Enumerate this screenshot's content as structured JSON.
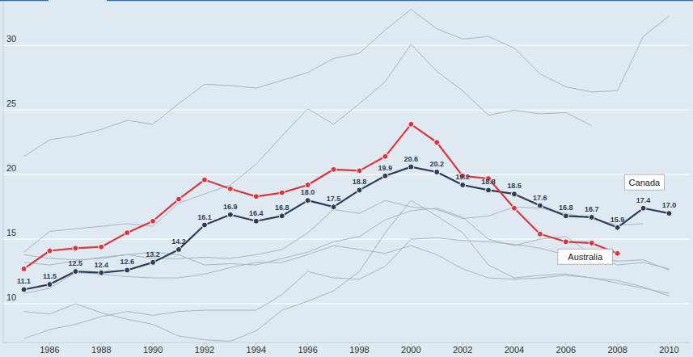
{
  "chart_data": {
    "type": "line",
    "x": [
      1985,
      1986,
      1987,
      1988,
      1989,
      1990,
      1991,
      1992,
      1993,
      1994,
      1995,
      1996,
      1997,
      1998,
      1999,
      2000,
      2001,
      2002,
      2003,
      2004,
      2005,
      2006,
      2007,
      2008,
      2009,
      2010
    ],
    "xlim": [
      1984.2,
      2010.8
    ],
    "xticks": [
      1986,
      1988,
      1990,
      1992,
      1994,
      1996,
      1998,
      2000,
      2002,
      2004,
      2006,
      2008,
      2010
    ],
    "ylim": [
      7,
      33.4
    ],
    "yticks": [
      10,
      15,
      20,
      25,
      30
    ],
    "grid": true,
    "series": [
      {
        "color": "#a8b6c3",
        "marker": "none",
        "values": [
          21.4,
          22.7,
          23.0,
          23.5,
          24.2,
          23.9,
          25.5,
          27.0,
          26.9,
          26.7,
          27.3,
          27.9,
          29.0,
          29.4,
          31.2,
          32.8,
          31.3,
          30.5,
          30.7,
          29.8,
          27.8,
          26.8,
          26.4,
          26.5,
          30.7,
          32.3
        ]
      },
      {
        "color": "#a8b6c3",
        "marker": "none",
        "values": [
          14.0,
          15.6,
          15.8,
          16.0,
          16.2,
          16.0,
          17.8,
          18.5,
          19.2,
          20.8,
          23.0,
          25.1,
          23.9,
          25.5,
          27.2,
          30.1,
          28.0,
          26.5,
          24.6,
          25.0,
          24.7,
          24.8,
          23.8,
          null,
          null,
          null
        ]
      },
      {
        "color": "#a8b6c3",
        "marker": "none",
        "values": [
          13.2,
          13.0,
          13.3,
          13.6,
          13.8,
          14.0,
          13.8,
          13.0,
          13.1,
          13.0,
          13.5,
          14.0,
          14.8,
          15.2,
          16.5,
          17.2,
          17.4,
          16.7,
          15.0,
          14.5,
          15.0,
          15.2,
          13.8,
          13.0,
          13.2,
          12.7
        ]
      },
      {
        "color": "#a8b6c3",
        "marker": "none",
        "values": [
          10.8,
          11.2,
          12.4,
          12.3,
          12.1,
          12.0,
          12.0,
          12.3,
          12.8,
          13.2,
          13.2,
          13.8,
          14.5,
          14.2,
          13.9,
          14.5,
          13.8,
          12.7,
          12.0,
          11.9,
          12.0,
          12.2,
          12.0,
          11.6,
          11.2,
          10.8
        ]
      },
      {
        "color": "#a8b6c3",
        "marker": "none",
        "values": [
          9.4,
          9.2,
          10.0,
          9.3,
          8.8,
          8.4,
          7.5,
          7.2,
          7.1,
          7.9,
          9.5,
          10.2,
          11.0,
          12.5,
          15.5,
          18.0,
          16.8,
          15.5,
          13.0,
          12.0,
          12.2,
          12.3,
          12.0,
          11.8,
          11.3,
          10.6
        ]
      },
      {
        "color": "#a8b6c3",
        "marker": "none",
        "values": [
          7.3,
          8.0,
          8.4,
          9.0,
          9.4,
          9.1,
          9.4,
          9.5,
          9.5,
          9.5,
          10.7,
          12.5,
          12.0,
          11.9,
          12.9,
          15.0,
          15.1,
          14.9,
          14.8,
          14.6,
          14.3,
          13.8,
          13.6,
          13.3,
          13.4,
          12.6
        ]
      },
      {
        "color": "#a8b6c3",
        "marker": "none",
        "values": [
          13.8,
          13.5,
          13.4,
          13.5,
          13.8,
          13.5,
          13.5,
          13.6,
          13.5,
          13.8,
          14.2,
          15.5,
          17.3,
          17.0,
          18.0,
          17.5,
          17.3,
          16.6,
          16.8,
          17.5,
          17.4,
          17.0,
          16.6,
          16.1,
          16.2,
          null
        ]
      },
      {
        "name": "Canada",
        "color": "#2c3e55",
        "marker": "circle",
        "data_labels": true,
        "values": [
          11.1,
          11.5,
          12.5,
          12.4,
          12.6,
          13.2,
          14.2,
          16.1,
          16.9,
          16.4,
          16.8,
          18.0,
          17.5,
          18.8,
          19.9,
          20.6,
          20.2,
          19.2,
          18.8,
          18.5,
          17.6,
          16.8,
          16.7,
          15.9,
          17.4,
          17.0
        ],
        "value_labels": [
          "11.1",
          "11.5",
          "12.5",
          "12.4",
          "12.6",
          "13.2",
          "14.2",
          "16.1",
          "16.9",
          "16.4",
          "16.8",
          "18.0",
          "17.5",
          "18.8",
          "19.9",
          "20.6",
          "20.2",
          "19.2",
          "18.8",
          "18.5",
          "17.6",
          "16.8",
          "16.7",
          "15.9",
          "17.4",
          "17.0"
        ]
      },
      {
        "name": "Australia",
        "color": "#d9363e",
        "marker": "circle",
        "values": [
          12.7,
          14.1,
          14.3,
          14.4,
          15.5,
          16.4,
          18.1,
          19.6,
          18.9,
          18.3,
          18.6,
          19.2,
          20.4,
          20.3,
          21.4,
          23.9,
          22.5,
          19.9,
          19.7,
          17.4,
          15.4,
          14.8,
          14.7,
          13.9,
          null,
          null
        ]
      }
    ]
  }
}
